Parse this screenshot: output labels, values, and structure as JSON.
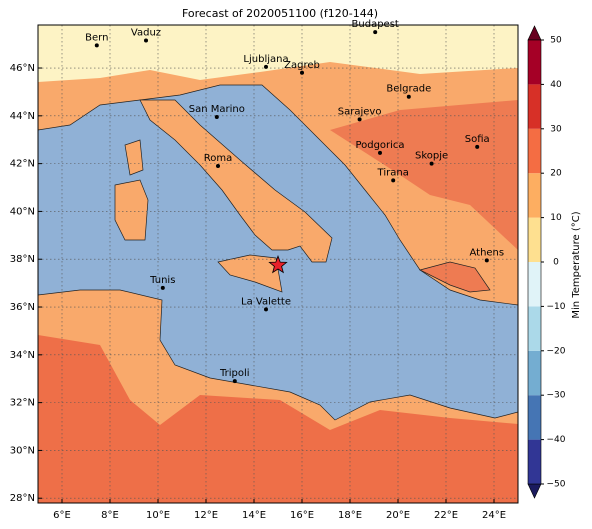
{
  "map": {
    "title": "Forecast of 2020051100 (f120-144)",
    "xlim": [
      5,
      25
    ],
    "ylim": [
      27.8,
      47.8
    ],
    "xticks": [
      {
        "value": 6,
        "label": "6°E"
      },
      {
        "value": 8,
        "label": "8°E"
      },
      {
        "value": 10,
        "label": "10°E"
      },
      {
        "value": 12,
        "label": "12°E"
      },
      {
        "value": 14,
        "label": "14°E"
      },
      {
        "value": 16,
        "label": "16°E"
      },
      {
        "value": 18,
        "label": "18°E"
      },
      {
        "value": 20,
        "label": "20°E"
      },
      {
        "value": 22,
        "label": "22°E"
      },
      {
        "value": 24,
        "label": "24°E"
      }
    ],
    "yticks": [
      {
        "value": 28,
        "label": "28°N"
      },
      {
        "value": 30,
        "label": "30°N"
      },
      {
        "value": 32,
        "label": "32°N"
      },
      {
        "value": 34,
        "label": "34°N"
      },
      {
        "value": 36,
        "label": "36°N"
      },
      {
        "value": 38,
        "label": "38°N"
      },
      {
        "value": 40,
        "label": "40°N"
      },
      {
        "value": 42,
        "label": "42°N"
      },
      {
        "value": 44,
        "label": "44°N"
      },
      {
        "value": 46,
        "label": "46°N"
      }
    ],
    "grid": true,
    "cities": [
      {
        "name": "Bern",
        "lon": 7.45,
        "lat": 46.95
      },
      {
        "name": "Vaduz",
        "lon": 9.5,
        "lat": 47.15
      },
      {
        "name": "Budapest",
        "lon": 19.05,
        "lat": 47.5
      },
      {
        "name": "Ljubljana",
        "lon": 14.5,
        "lat": 46.05
      },
      {
        "name": "Zagreb",
        "lon": 16.0,
        "lat": 45.8
      },
      {
        "name": "Belgrade",
        "lon": 20.45,
        "lat": 44.8
      },
      {
        "name": "San Marino",
        "lon": 12.45,
        "lat": 43.95
      },
      {
        "name": "Sarajevo",
        "lon": 18.4,
        "lat": 43.85
      },
      {
        "name": "Sofia",
        "lon": 23.3,
        "lat": 42.7
      },
      {
        "name": "Podgorica",
        "lon": 19.25,
        "lat": 42.45
      },
      {
        "name": "Skopje",
        "lon": 21.4,
        "lat": 42.0
      },
      {
        "name": "Roma",
        "lon": 12.5,
        "lat": 41.9
      },
      {
        "name": "Tirana",
        "lon": 19.8,
        "lat": 41.3
      },
      {
        "name": "Athens",
        "lon": 23.7,
        "lat": 37.95
      },
      {
        "name": "Tunis",
        "lon": 10.2,
        "lat": 36.8
      },
      {
        "name": "La Valette",
        "lon": 14.5,
        "lat": 35.9
      },
      {
        "name": "Tripoli",
        "lon": 13.2,
        "lat": 32.9
      }
    ],
    "event": {
      "lon": 15.0,
      "lat": 37.75,
      "color": "#e8202a"
    },
    "colorbar": {
      "label": "Min Temperature (°C)",
      "lim": [
        -50,
        50
      ],
      "ticks": [
        {
          "value": -50,
          "label": "−50"
        },
        {
          "value": -40,
          "label": "−40"
        },
        {
          "value": -30,
          "label": "−30"
        },
        {
          "value": -20,
          "label": "−20"
        },
        {
          "value": -10,
          "label": "−10"
        },
        0,
        10,
        20,
        30,
        40,
        50
      ],
      "colors": [
        "#313695",
        "#4575b4",
        "#74add1",
        "#abd9e9",
        "#e0f3f8",
        "#fee090",
        "#fdae61",
        "#f46d43",
        "#d73027",
        "#a50026"
      ]
    }
  }
}
